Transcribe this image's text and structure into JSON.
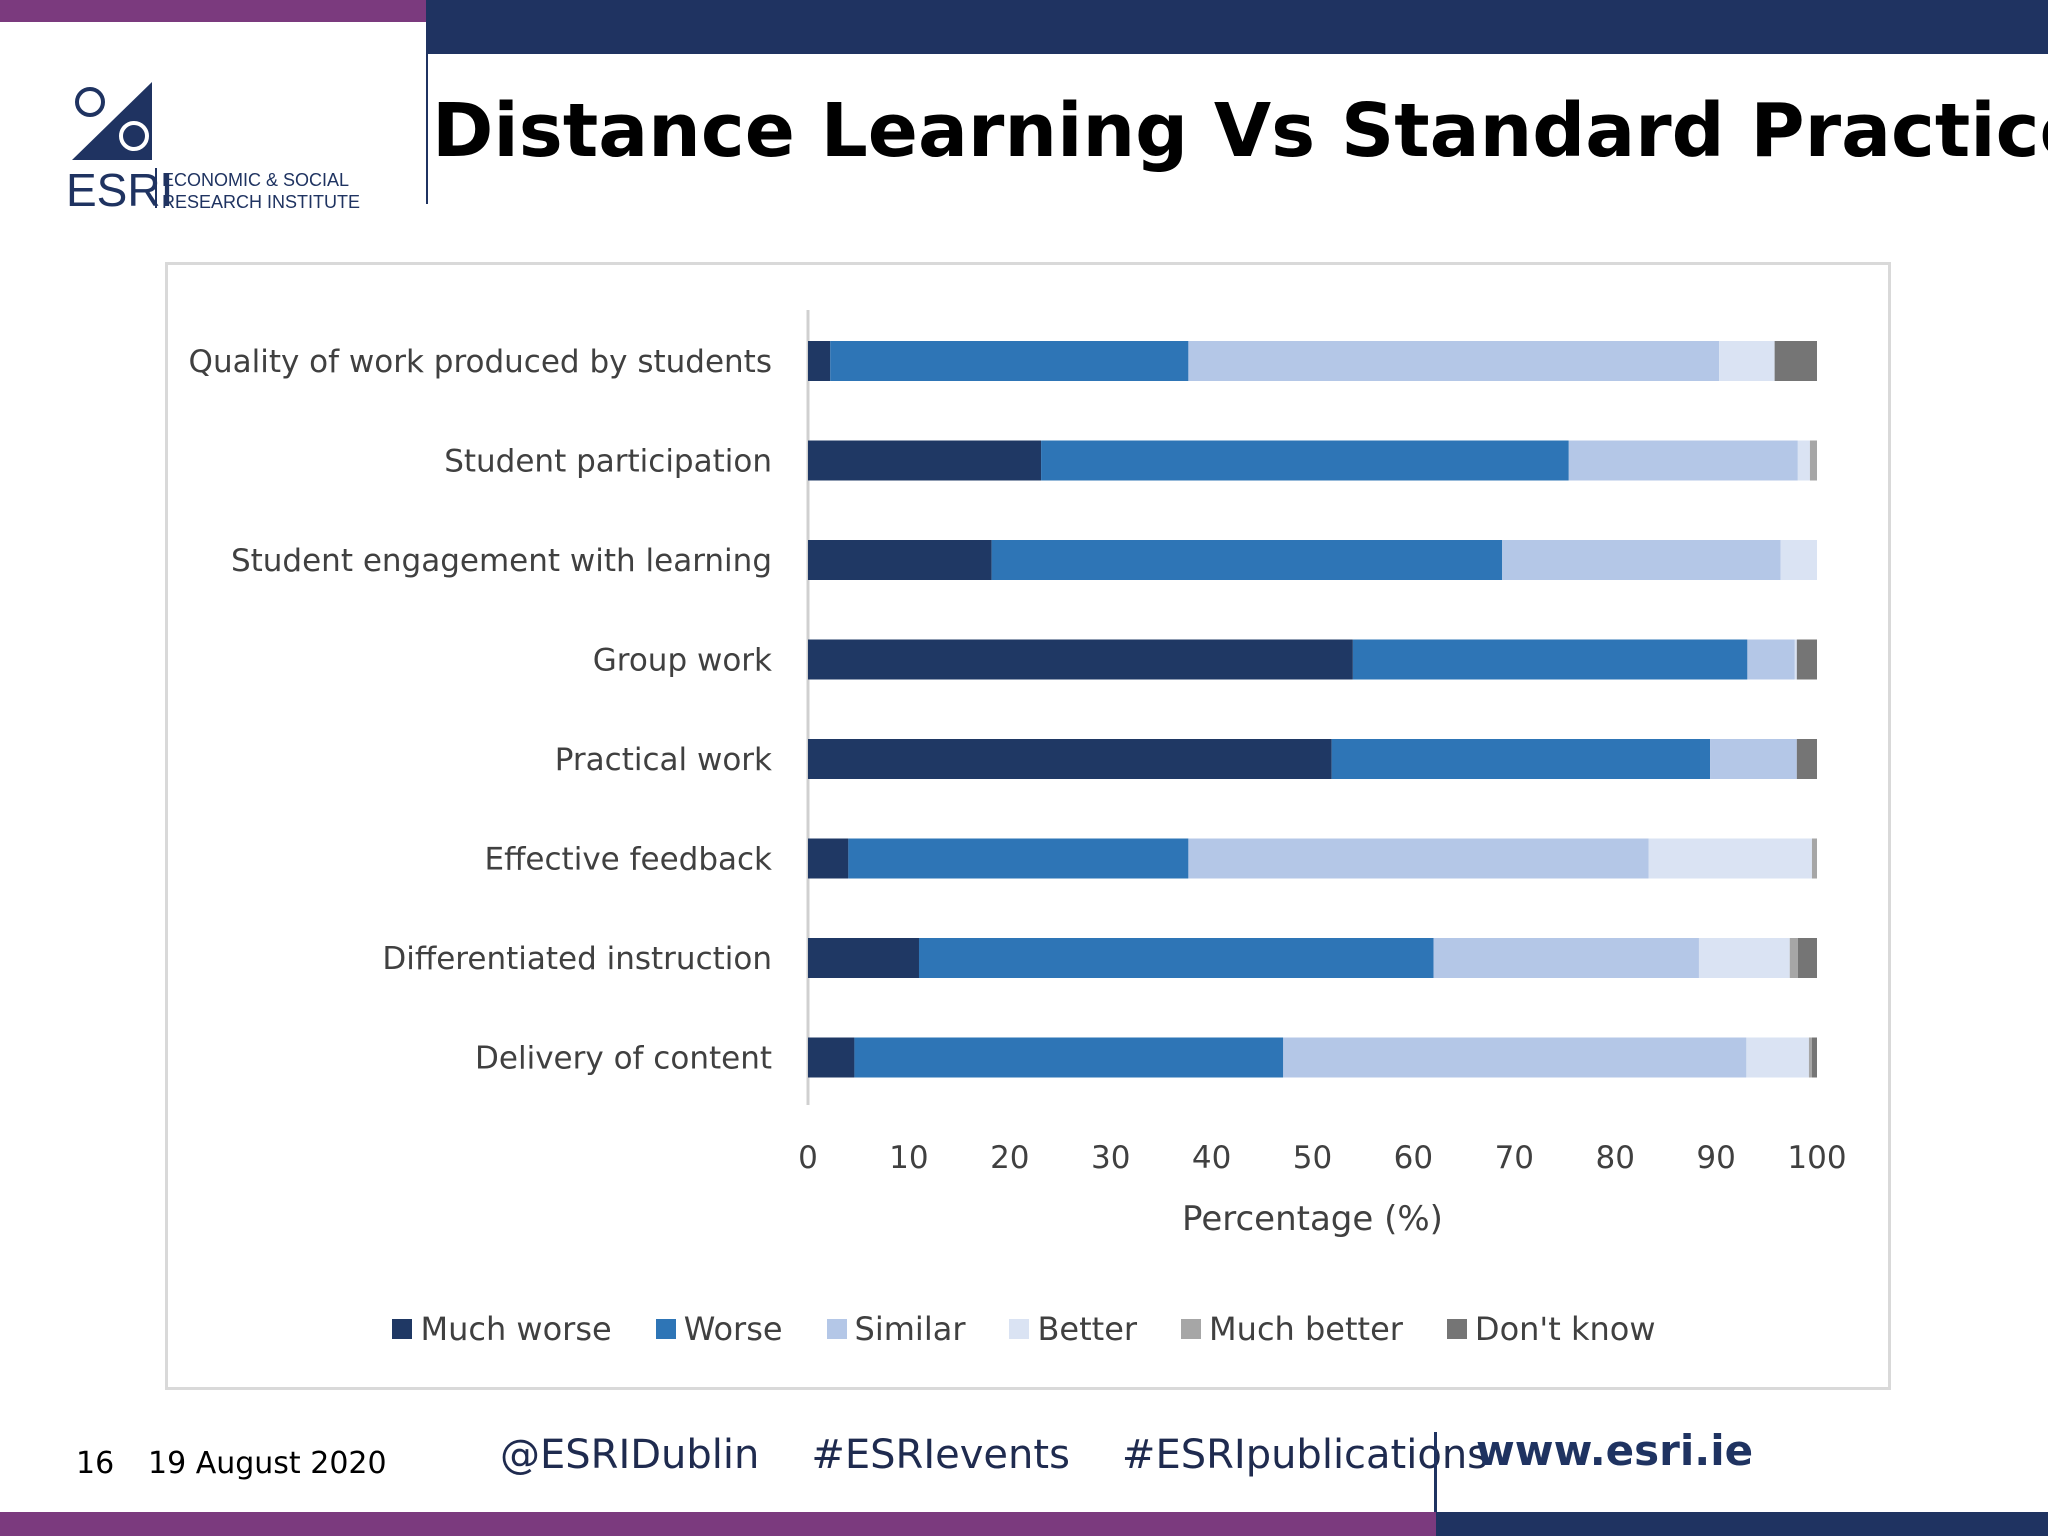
{
  "header": {
    "title": "Distance Learning Vs Standard Practice",
    "logo": {
      "acronym": "ESRI",
      "line1": "ECONOMIC & SOCIAL",
      "line2": "RESEARCH INSTITUTE"
    }
  },
  "colors": {
    "brand_navy": "#1f3361",
    "brand_purple": "#7b3a7e"
  },
  "chart_data": {
    "type": "bar",
    "orientation": "horizontal",
    "stacked": true,
    "categories": [
      "Quality of work produced by students",
      "Student participation",
      "Student engagement with learning",
      "Group work",
      "Practical work",
      "Effective feedback",
      "Differentiated instruction",
      "Delivery of content"
    ],
    "series": [
      {
        "name": "Much worse",
        "color": "#1f3864",
        "values": [
          2.2,
          23.1,
          18.2,
          54.0,
          51.9,
          4.0,
          11.0,
          4.6
        ]
      },
      {
        "name": "Worse",
        "color": "#2e75b6",
        "values": [
          35.5,
          52.3,
          50.6,
          39.1,
          37.5,
          33.7,
          51.0,
          42.5
        ]
      },
      {
        "name": "Similar",
        "color": "#b4c7e7",
        "values": [
          52.6,
          22.7,
          27.6,
          4.7,
          8.6,
          45.6,
          26.3,
          45.9
        ]
      },
      {
        "name": "Better",
        "color": "#dae3f3",
        "values": [
          5.5,
          1.2,
          3.6,
          0.2,
          0.0,
          16.2,
          9.0,
          6.2
        ]
      },
      {
        "name": "Much better",
        "color": "#a6a6a6",
        "values": [
          0.0,
          0.7,
          0.0,
          0.0,
          0.0,
          0.5,
          0.8,
          0.3
        ]
      },
      {
        "name": "Don't know",
        "color": "#757575",
        "values": [
          4.2,
          0.0,
          0.0,
          2.0,
          2.0,
          0.0,
          1.9,
          0.5
        ]
      }
    ],
    "xlabel": "Percentage (%)",
    "xlim": [
      0,
      100
    ],
    "xticks": [
      "0",
      "10",
      "20",
      "30",
      "40",
      "50",
      "60",
      "70",
      "80",
      "90",
      "100"
    ],
    "legend_position": "bottom",
    "grid": false
  },
  "footer": {
    "page_number": "16",
    "date": "19 August 2020",
    "links": [
      "@ESRIDublin",
      "#ESRIevents",
      "#ESRIpublications"
    ],
    "website": "www.esri.ie"
  }
}
